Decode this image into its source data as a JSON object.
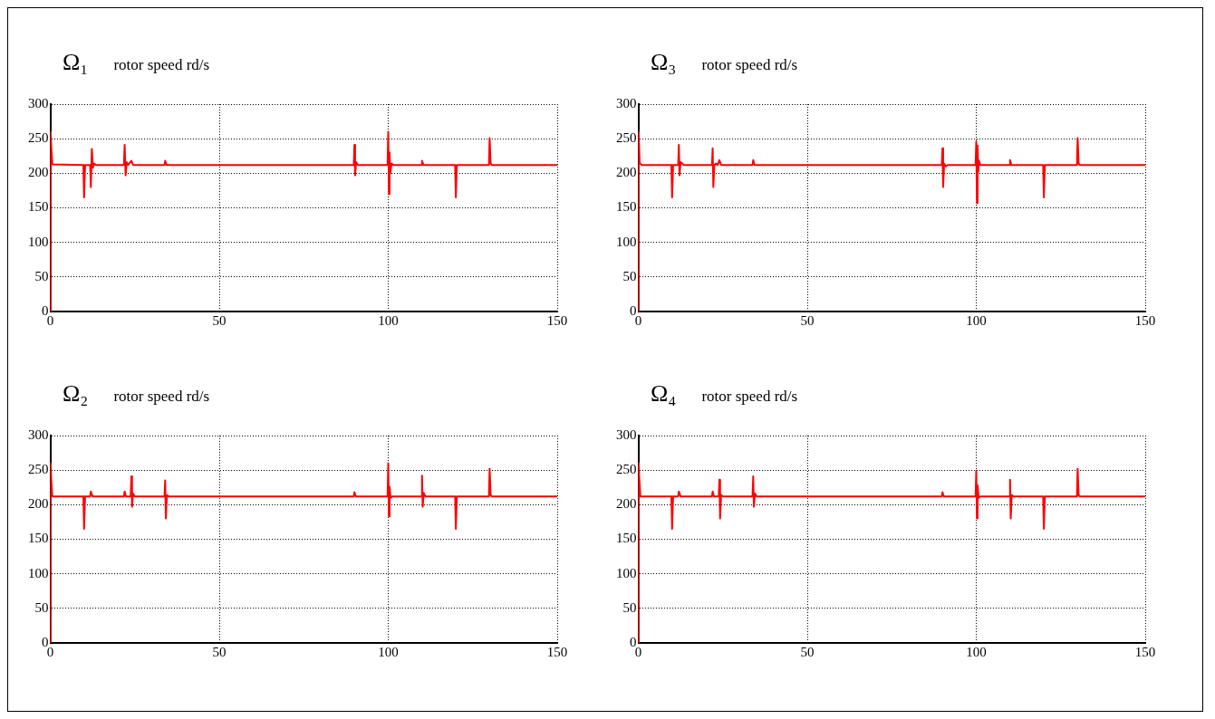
{
  "chart_data": [
    {
      "type": "line",
      "title": "Ω₁",
      "subtitle": "rotor speed rd/s",
      "color": "#ff0000",
      "marker": "none",
      "line_style": "solid",
      "grid": true,
      "legend": false,
      "xlim": [
        0,
        150
      ],
      "ylim": [
        0,
        300
      ],
      "xticks": [
        0,
        50,
        100,
        150
      ],
      "yticks": [
        0,
        50,
        100,
        150,
        200,
        250,
        300
      ],
      "x": [
        0,
        0.1,
        0.3,
        0.6,
        9.8,
        10,
        10.3,
        11.8,
        12,
        12.3,
        12.6,
        13,
        13.5,
        21.8,
        22,
        22.3,
        22.6,
        23,
        24,
        24.5,
        33.8,
        34,
        34.4,
        89.8,
        90,
        90.2,
        90.5,
        91,
        99.8,
        100,
        100.2,
        100.4,
        100.6,
        101,
        101.5,
        109.8,
        110,
        110.4,
        119.8,
        120,
        120.3,
        129.8,
        130,
        130.3,
        130.6,
        150
      ],
      "values": [
        0,
        260,
        237,
        213,
        212,
        165,
        212,
        212,
        180,
        235,
        208,
        214,
        212,
        212,
        241,
        197,
        216,
        212,
        218,
        212,
        212,
        218,
        212,
        212,
        241,
        197,
        216,
        212,
        212,
        260,
        170,
        230,
        200,
        214,
        212,
        212,
        218,
        212,
        212,
        165,
        212,
        212,
        251,
        214,
        212,
        212
      ]
    },
    {
      "type": "line",
      "title": "Ω₃",
      "subtitle": "rotor speed rd/s",
      "color": "#ff0000",
      "marker": "none",
      "line_style": "solid",
      "grid": true,
      "legend": false,
      "xlim": [
        0,
        150
      ],
      "ylim": [
        0,
        300
      ],
      "xticks": [
        0,
        50,
        100,
        150
      ],
      "yticks": [
        0,
        50,
        100,
        150,
        200,
        250,
        300
      ],
      "x": [
        0,
        0.1,
        0.4,
        1,
        9.8,
        10,
        10.3,
        11.8,
        12,
        12.2,
        12.5,
        13,
        13.5,
        21.8,
        22,
        22.2,
        22.5,
        23,
        23.5,
        24,
        24.5,
        33.8,
        34,
        34.4,
        89.8,
        90,
        90.2,
        90.5,
        91,
        91.5,
        99.8,
        100,
        100.2,
        100.4,
        100.6,
        100.8,
        101.2,
        109.8,
        110,
        110.4,
        119.8,
        120,
        120.3,
        129.8,
        130,
        130.3,
        130.6,
        150
      ],
      "values": [
        0,
        260,
        215,
        212,
        212,
        165,
        212,
        212,
        241,
        197,
        216,
        214,
        212,
        212,
        236,
        180,
        212,
        214,
        212,
        219,
        212,
        212,
        219,
        212,
        212,
        236,
        180,
        214,
        210,
        212,
        212,
        246,
        157,
        240,
        202,
        218,
        212,
        212,
        219,
        212,
        212,
        165,
        212,
        212,
        251,
        214,
        212,
        212
      ]
    },
    {
      "type": "line",
      "title": "Ω₂",
      "subtitle": "rotor speed rd/s",
      "color": "#ff0000",
      "marker": "none",
      "line_style": "solid",
      "grid": true,
      "legend": false,
      "xlim": [
        0,
        150
      ],
      "ylim": [
        0,
        300
      ],
      "xticks": [
        0,
        50,
        100,
        150
      ],
      "yticks": [
        0,
        50,
        100,
        150,
        200,
        250,
        300
      ],
      "x": [
        0,
        0.1,
        0.3,
        0.6,
        9.8,
        10,
        10.3,
        11.8,
        12,
        12.5,
        21.8,
        22,
        22.4,
        23.8,
        24,
        24.2,
        24.5,
        25,
        33.8,
        34,
        34.2,
        34.5,
        35,
        89.8,
        90,
        90.4,
        99.8,
        100,
        100.2,
        100.4,
        100.7,
        101.2,
        109.8,
        110,
        110.2,
        110.5,
        111,
        119.8,
        120,
        120.3,
        129.8,
        130,
        130.3,
        130.6,
        150
      ],
      "values": [
        0,
        260,
        236,
        212,
        212,
        165,
        212,
        212,
        219,
        212,
        212,
        219,
        212,
        212,
        241,
        197,
        216,
        212,
        212,
        235,
        180,
        214,
        212,
        212,
        218,
        212,
        212,
        260,
        183,
        226,
        210,
        212,
        212,
        242,
        197,
        217,
        212,
        212,
        165,
        212,
        212,
        252,
        214,
        212,
        212
      ]
    },
    {
      "type": "line",
      "title": "Ω₄",
      "subtitle": "rotor speed rd/s",
      "color": "#ff0000",
      "marker": "none",
      "line_style": "solid",
      "grid": true,
      "legend": false,
      "xlim": [
        0,
        150
      ],
      "ylim": [
        0,
        300
      ],
      "xticks": [
        0,
        50,
        100,
        150
      ],
      "yticks": [
        0,
        50,
        100,
        150,
        200,
        250,
        300
      ],
      "x": [
        0,
        0.1,
        0.3,
        0.6,
        9.8,
        10,
        10.3,
        11.8,
        12,
        12.5,
        21.8,
        22,
        22.4,
        23.8,
        24,
        24.2,
        24.5,
        25,
        33.8,
        34,
        34.2,
        34.5,
        35,
        89.8,
        90,
        90.4,
        99.8,
        100,
        100.2,
        100.4,
        100.7,
        101.2,
        109.8,
        110,
        110.2,
        110.5,
        111,
        119.8,
        120,
        120.3,
        129.8,
        130,
        130.3,
        130.6,
        150
      ],
      "values": [
        0,
        260,
        237,
        212,
        212,
        165,
        212,
        212,
        219,
        212,
        212,
        219,
        212,
        212,
        236,
        180,
        214,
        212,
        212,
        241,
        197,
        216,
        212,
        212,
        218,
        212,
        212,
        249,
        180,
        228,
        210,
        212,
        212,
        236,
        180,
        214,
        212,
        212,
        165,
        212,
        212,
        252,
        214,
        212,
        212
      ]
    }
  ]
}
